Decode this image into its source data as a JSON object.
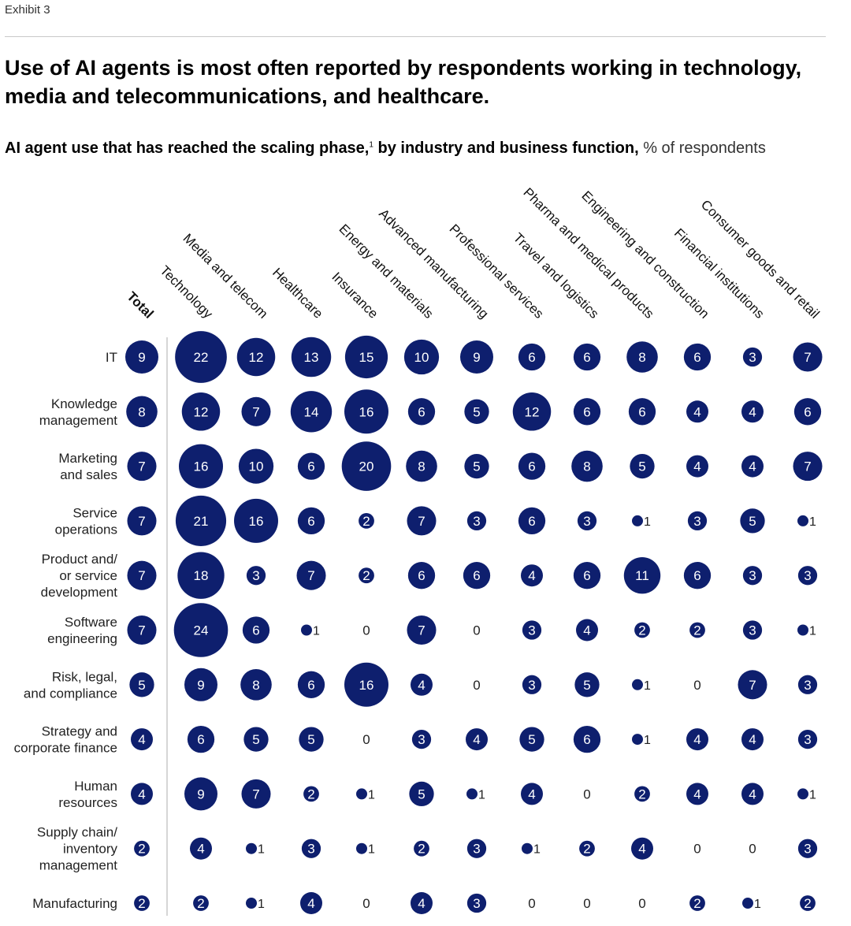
{
  "exhibit": "Exhibit 3",
  "title": "Use of AI agents is most often reported by respondents working in technology, media and telecommunications, and healthcare.",
  "subtitle_main": "AI agent use that has reached the scaling phase,",
  "subtitle_footnote": "1",
  "subtitle_rest": " by industry and business function,",
  "subtitle_unit": " % of respondents",
  "colors": {
    "bubble": "#0e1f6e",
    "label_on_bubble": "#ffffff",
    "divider": "#c8c8c8"
  },
  "chart_data": {
    "type": "bubble-matrix",
    "unit": "% of respondents",
    "columns": [
      "Total",
      "Technology",
      "Media and telecom",
      "Healthcare",
      "Insurance",
      "Energy and materials",
      "Advanced manufacturing",
      "Professional services",
      "Travel and logistics",
      "Pharma and medical products",
      "Engineering and construction",
      "Financial institutions",
      "Consumer goods and retail"
    ],
    "rows": [
      {
        "label": [
          "IT"
        ],
        "values": [
          9,
          22,
          12,
          13,
          15,
          10,
          9,
          6,
          6,
          8,
          6,
          3,
          7
        ]
      },
      {
        "label": [
          "Knowledge",
          "management"
        ],
        "values": [
          8,
          12,
          7,
          14,
          16,
          6,
          5,
          12,
          6,
          6,
          4,
          4,
          6
        ]
      },
      {
        "label": [
          "Marketing",
          "and sales"
        ],
        "values": [
          7,
          16,
          10,
          6,
          20,
          8,
          5,
          6,
          8,
          5,
          4,
          4,
          7
        ]
      },
      {
        "label": [
          "Service",
          "operations"
        ],
        "values": [
          7,
          21,
          16,
          6,
          2,
          7,
          3,
          6,
          3,
          1,
          3,
          5,
          1
        ]
      },
      {
        "label": [
          "Product and/",
          "or service",
          "development"
        ],
        "values": [
          7,
          18,
          3,
          7,
          2,
          6,
          6,
          4,
          6,
          11,
          6,
          3,
          3
        ]
      },
      {
        "label": [
          "Software",
          "engineering"
        ],
        "values": [
          7,
          24,
          6,
          1,
          0,
          7,
          0,
          3,
          4,
          2,
          2,
          3,
          1
        ]
      },
      {
        "label": [
          "Risk, legal,",
          "and compliance"
        ],
        "values": [
          5,
          9,
          8,
          6,
          16,
          4,
          0,
          3,
          5,
          1,
          0,
          7,
          3
        ]
      },
      {
        "label": [
          "Strategy and",
          "corporate finance"
        ],
        "values": [
          4,
          6,
          5,
          5,
          0,
          3,
          4,
          5,
          6,
          1,
          4,
          4,
          3
        ]
      },
      {
        "label": [
          "Human",
          "resources"
        ],
        "values": [
          4,
          9,
          7,
          2,
          1,
          5,
          1,
          4,
          0,
          2,
          4,
          4,
          1
        ]
      },
      {
        "label": [
          "Supply chain/",
          "inventory",
          "management"
        ],
        "values": [
          2,
          4,
          1,
          3,
          1,
          2,
          3,
          1,
          2,
          4,
          0,
          0,
          3
        ]
      },
      {
        "label": [
          "Manufacturing"
        ],
        "values": [
          2,
          2,
          1,
          4,
          0,
          4,
          3,
          0,
          0,
          0,
          2,
          1,
          2
        ]
      }
    ]
  }
}
